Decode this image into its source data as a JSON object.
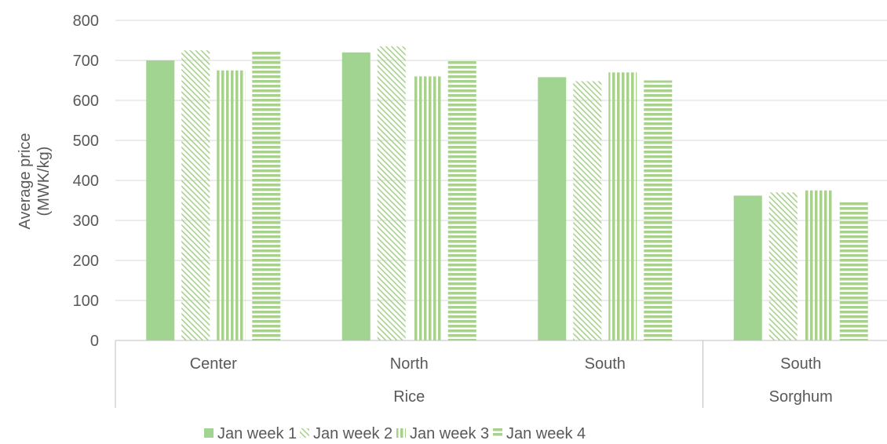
{
  "chart_data": {
    "type": "bar",
    "ylabel_line1": "Average price",
    "ylabel_line2": "(MWK/kg)",
    "ylim": [
      0,
      800
    ],
    "yticks": [
      0,
      100,
      200,
      300,
      400,
      500,
      600,
      700,
      800
    ],
    "grid": true,
    "legend_position": "bottom",
    "categories": [
      {
        "label": "Center",
        "group": "Rice"
      },
      {
        "label": "North",
        "group": "Rice"
      },
      {
        "label": "South",
        "group": "Rice"
      },
      {
        "label": "South",
        "group": "Sorghum"
      }
    ],
    "groups": [
      "Rice",
      "Sorghum"
    ],
    "series": [
      {
        "name": "Jan week 1",
        "pattern": "solid",
        "values": [
          700,
          720,
          658,
          362
        ]
      },
      {
        "name": "Jan week 2",
        "pattern": "diagonal",
        "values": [
          725,
          735,
          648,
          370
        ]
      },
      {
        "name": "Jan week 3",
        "pattern": "vertical",
        "values": [
          675,
          660,
          670,
          375
        ]
      },
      {
        "name": "Jan week 4",
        "pattern": "horizontal",
        "values": [
          725,
          700,
          650,
          350
        ]
      }
    ],
    "colors": {
      "bar": "#a9d18e",
      "bar_solid": "#a1d490",
      "axis": "#bfbfbf",
      "grid": "#d9d9d9",
      "text": "#595959"
    }
  }
}
